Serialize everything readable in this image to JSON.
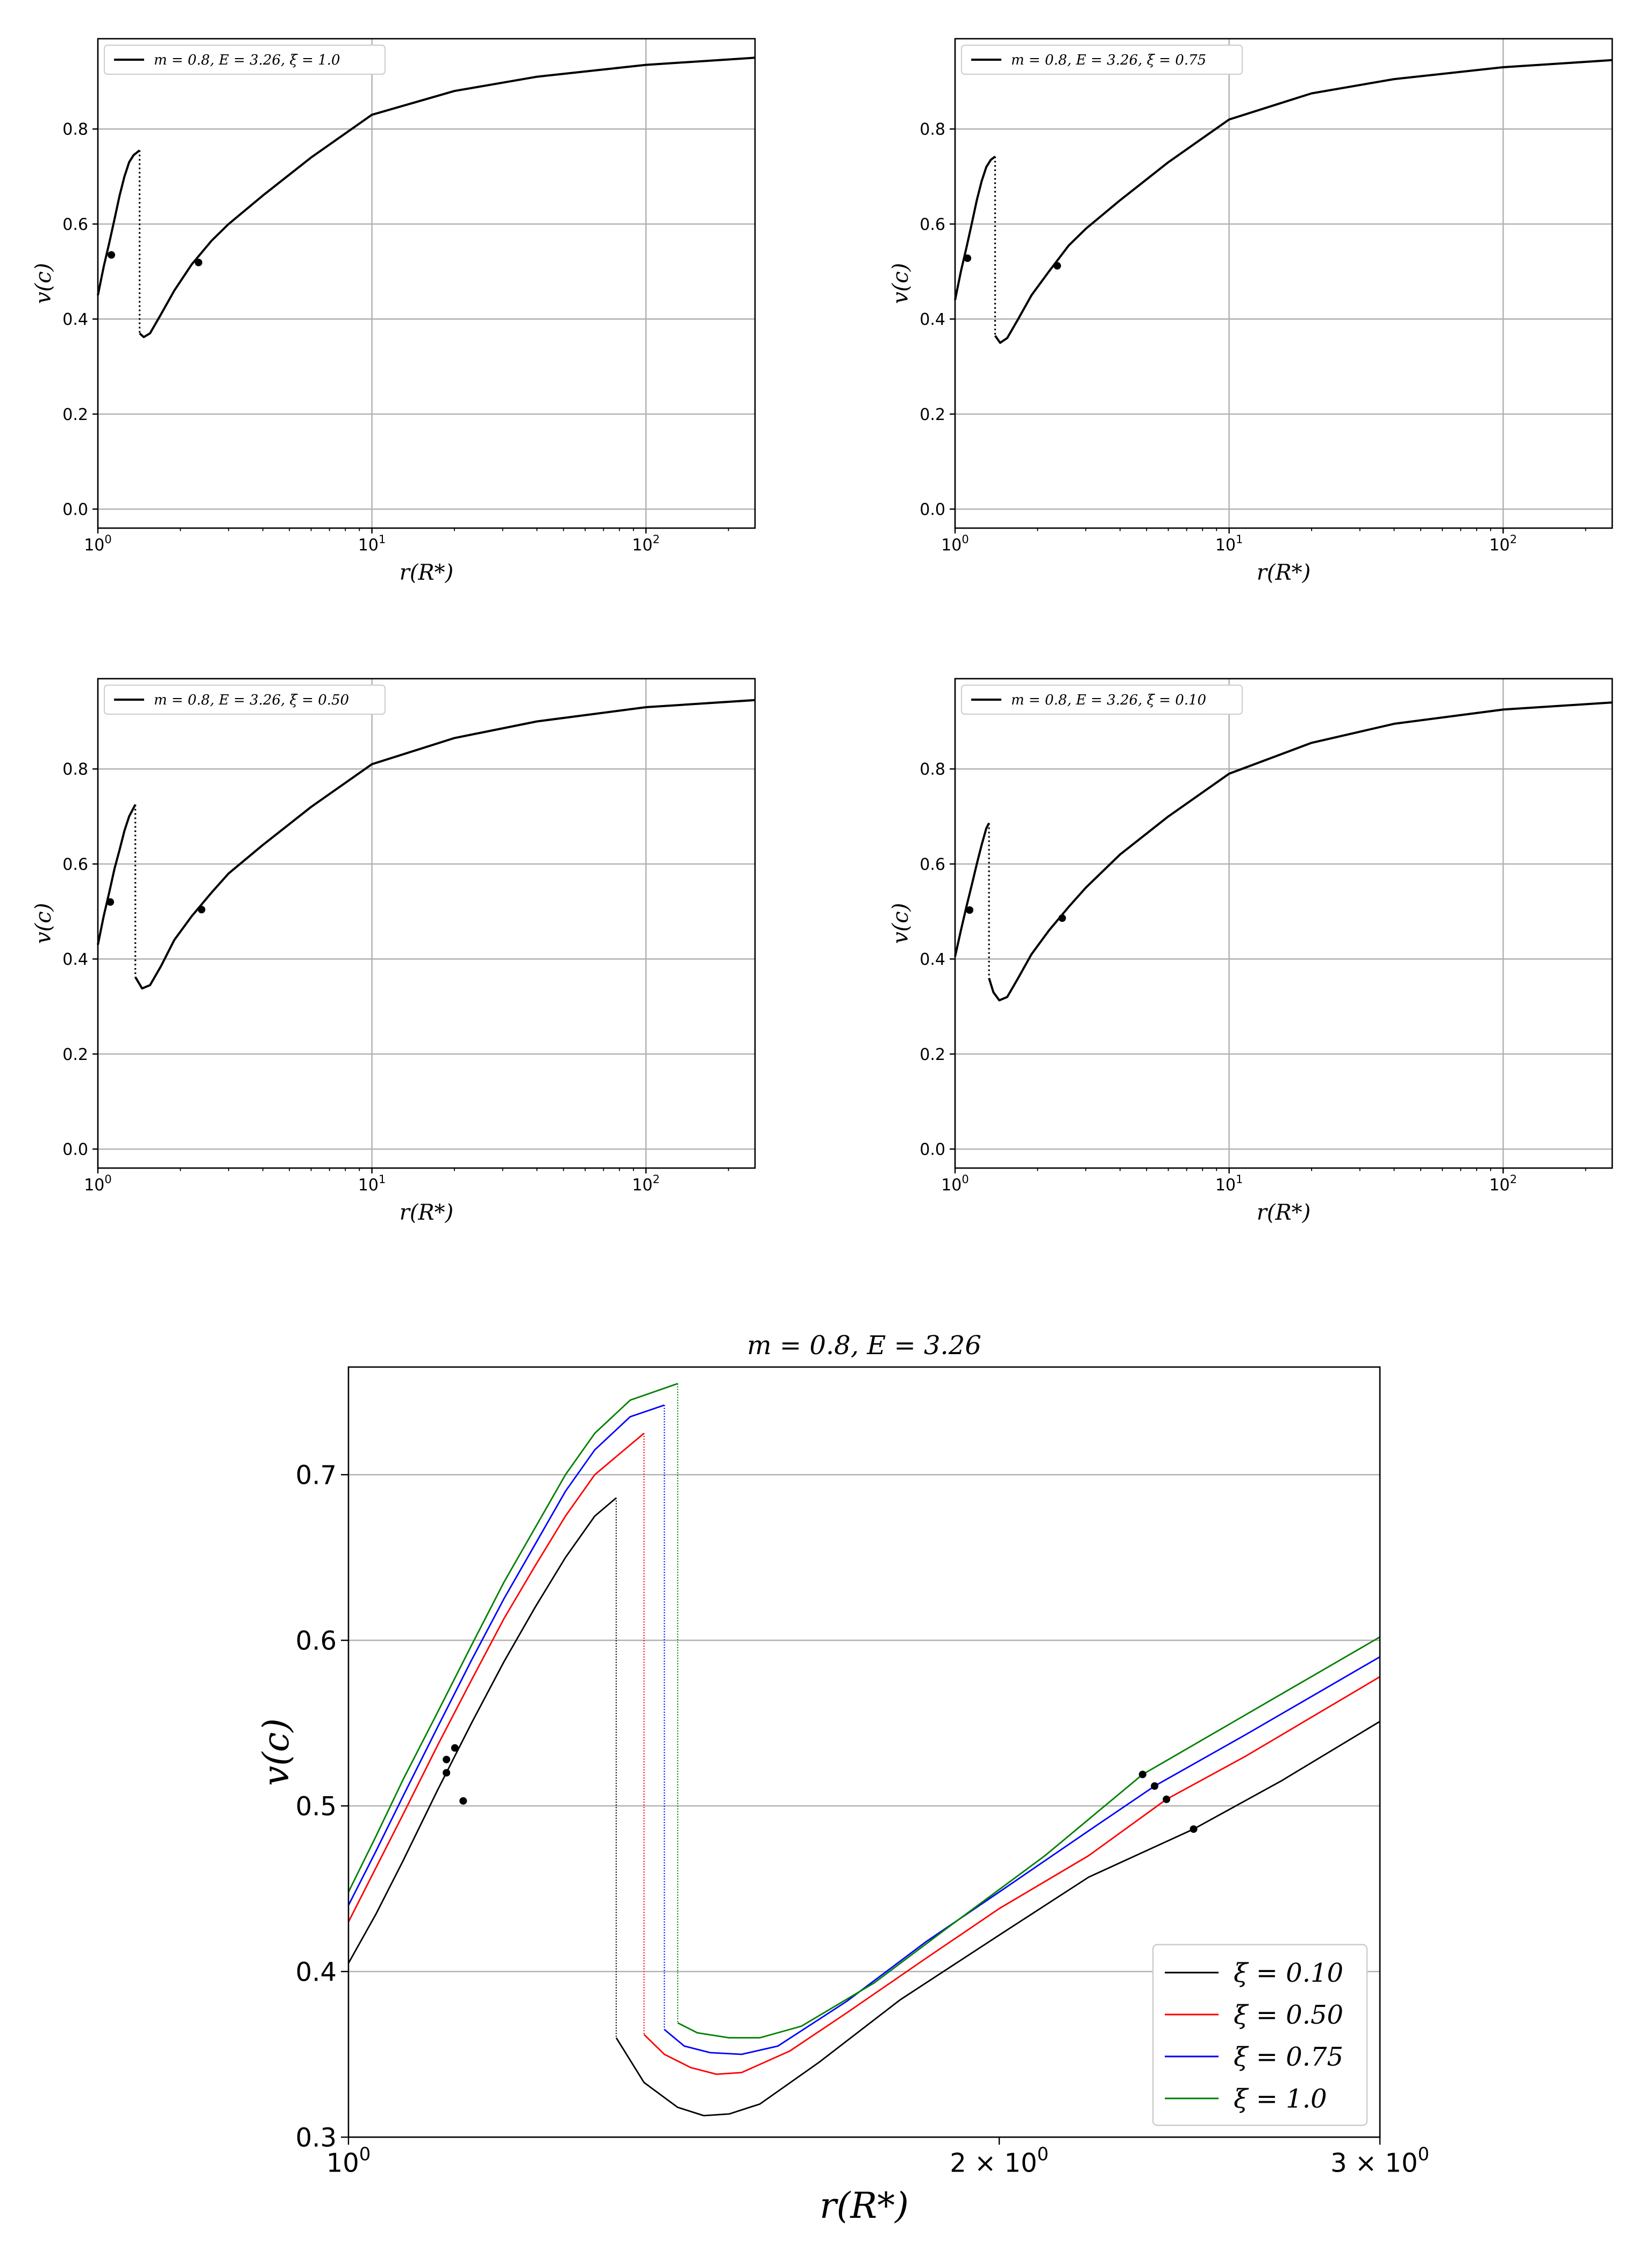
{
  "chart_data": [
    {
      "type": "line",
      "xscale": "log",
      "xlim": [
        1,
        250
      ],
      "ylim": [
        -0.04,
        0.99
      ],
      "yticks": [
        0.0,
        0.2,
        0.4,
        0.6,
        0.8
      ],
      "ytick_labels": [
        "0.0",
        "0.2",
        "0.4",
        "0.6",
        "0.8"
      ],
      "xtick_labels": [
        {
          "base": "10",
          "exp": "0"
        },
        {
          "base": "10",
          "exp": "1"
        },
        {
          "base": "10",
          "exp": "2"
        }
      ],
      "xlabel": "r(R*)",
      "ylabel": "v(c)",
      "grid": true,
      "legend_position": "top-left",
      "legend": [
        "m = 0.8, E = 3.26, ξ = 1.0"
      ],
      "series": [
        {
          "name": "m = 0.8, E = 3.26, ξ = 1.0",
          "color": "#000000",
          "inner": [
            [
              1.0,
              0.45
            ],
            [
              1.05,
              0.51
            ],
            [
              1.1,
              0.56
            ],
            [
              1.15,
              0.61
            ],
            [
              1.2,
              0.66
            ],
            [
              1.25,
              0.7
            ],
            [
              1.3,
              0.73
            ],
            [
              1.35,
              0.745
            ],
            [
              1.42,
              0.755
            ]
          ],
          "shock_x": 1.42,
          "outer": [
            [
              1.42,
              0.37
            ],
            [
              1.47,
              0.362
            ],
            [
              1.55,
              0.37
            ],
            [
              1.7,
              0.41
            ],
            [
              1.9,
              0.46
            ],
            [
              2.2,
              0.515
            ],
            [
              2.6,
              0.565
            ],
            [
              3.0,
              0.6
            ],
            [
              4.0,
              0.66
            ],
            [
              6.0,
              0.74
            ],
            [
              10.0,
              0.83
            ],
            [
              20.0,
              0.88
            ],
            [
              40.0,
              0.91
            ],
            [
              100.0,
              0.935
            ],
            [
              250.0,
              0.95
            ]
          ],
          "markers": [
            [
              1.12,
              0.535
            ],
            [
              2.33,
              0.519
            ]
          ]
        }
      ]
    },
    {
      "type": "line",
      "xscale": "log",
      "xlim": [
        1,
        250
      ],
      "ylim": [
        -0.04,
        0.99
      ],
      "yticks": [
        0.0,
        0.2,
        0.4,
        0.6,
        0.8
      ],
      "ytick_labels": [
        "0.0",
        "0.2",
        "0.4",
        "0.6",
        "0.8"
      ],
      "xtick_labels": [
        {
          "base": "10",
          "exp": "0"
        },
        {
          "base": "10",
          "exp": "1"
        },
        {
          "base": "10",
          "exp": "2"
        }
      ],
      "xlabel": "r(R*)",
      "ylabel": "v(c)",
      "grid": true,
      "legend_position": "top-left",
      "legend": [
        "m = 0.8, E = 3.26, ξ = 0.75"
      ],
      "series": [
        {
          "name": "m = 0.8, E = 3.26, ξ = 0.75",
          "color": "#000000",
          "inner": [
            [
              1.0,
              0.44
            ],
            [
              1.05,
              0.5
            ],
            [
              1.1,
              0.55
            ],
            [
              1.15,
              0.6
            ],
            [
              1.2,
              0.65
            ],
            [
              1.25,
              0.69
            ],
            [
              1.3,
              0.72
            ],
            [
              1.35,
              0.735
            ],
            [
              1.4,
              0.742
            ]
          ],
          "shock_x": 1.4,
          "outer": [
            [
              1.4,
              0.365
            ],
            [
              1.46,
              0.35
            ],
            [
              1.55,
              0.36
            ],
            [
              1.7,
              0.4
            ],
            [
              1.9,
              0.45
            ],
            [
              2.2,
              0.5
            ],
            [
              2.6,
              0.555
            ],
            [
              3.0,
              0.59
            ],
            [
              4.0,
              0.65
            ],
            [
              6.0,
              0.73
            ],
            [
              10.0,
              0.82
            ],
            [
              20.0,
              0.875
            ],
            [
              40.0,
              0.905
            ],
            [
              100.0,
              0.93
            ],
            [
              250.0,
              0.945
            ]
          ],
          "markers": [
            [
              1.11,
              0.528
            ],
            [
              2.36,
              0.512
            ]
          ]
        }
      ]
    },
    {
      "type": "line",
      "xscale": "log",
      "xlim": [
        1,
        250
      ],
      "ylim": [
        -0.04,
        0.99
      ],
      "yticks": [
        0.0,
        0.2,
        0.4,
        0.6,
        0.8
      ],
      "ytick_labels": [
        "0.0",
        "0.2",
        "0.4",
        "0.6",
        "0.8"
      ],
      "xtick_labels": [
        {
          "base": "10",
          "exp": "0"
        },
        {
          "base": "10",
          "exp": "1"
        },
        {
          "base": "10",
          "exp": "2"
        }
      ],
      "xlabel": "r(R*)",
      "ylabel": "v(c)",
      "grid": true,
      "legend_position": "top-left",
      "legend": [
        "m = 0.8, E = 3.26, ξ = 0.50"
      ],
      "series": [
        {
          "name": "m = 0.8, E = 3.26, ξ = 0.50",
          "color": "#000000",
          "inner": [
            [
              1.0,
              0.43
            ],
            [
              1.05,
              0.49
            ],
            [
              1.1,
              0.54
            ],
            [
              1.15,
              0.59
            ],
            [
              1.2,
              0.63
            ],
            [
              1.25,
              0.67
            ],
            [
              1.3,
              0.7
            ],
            [
              1.37,
              0.725
            ]
          ],
          "shock_x": 1.37,
          "outer": [
            [
              1.37,
              0.362
            ],
            [
              1.45,
              0.338
            ],
            [
              1.55,
              0.345
            ],
            [
              1.7,
              0.385
            ],
            [
              1.9,
              0.44
            ],
            [
              2.2,
              0.49
            ],
            [
              2.6,
              0.54
            ],
            [
              3.0,
              0.58
            ],
            [
              4.0,
              0.64
            ],
            [
              6.0,
              0.72
            ],
            [
              10.0,
              0.81
            ],
            [
              20.0,
              0.865
            ],
            [
              40.0,
              0.9
            ],
            [
              100.0,
              0.93
            ],
            [
              250.0,
              0.945
            ]
          ],
          "markers": [
            [
              1.11,
              0.52
            ],
            [
              2.39,
              0.504
            ]
          ]
        }
      ]
    },
    {
      "type": "line",
      "xscale": "log",
      "xlim": [
        1,
        250
      ],
      "ylim": [
        -0.04,
        0.99
      ],
      "yticks": [
        0.0,
        0.2,
        0.4,
        0.6,
        0.8
      ],
      "ytick_labels": [
        "0.0",
        "0.2",
        "0.4",
        "0.6",
        "0.8"
      ],
      "xtick_labels": [
        {
          "base": "10",
          "exp": "0"
        },
        {
          "base": "10",
          "exp": "1"
        },
        {
          "base": "10",
          "exp": "2"
        }
      ],
      "xlabel": "r(R*)",
      "ylabel": "v(c)",
      "grid": true,
      "legend_position": "top-left",
      "legend": [
        "m = 0.8, E = 3.26, ξ = 0.10"
      ],
      "series": [
        {
          "name": "m = 0.8, E = 3.26, ξ = 0.10",
          "color": "#000000",
          "inner": [
            [
              1.0,
              0.405
            ],
            [
              1.05,
              0.46
            ],
            [
              1.1,
              0.51
            ],
            [
              1.15,
              0.555
            ],
            [
              1.2,
              0.6
            ],
            [
              1.25,
              0.64
            ],
            [
              1.3,
              0.675
            ],
            [
              1.33,
              0.686
            ]
          ],
          "shock_x": 1.33,
          "outer": [
            [
              1.33,
              0.36
            ],
            [
              1.38,
              0.33
            ],
            [
              1.45,
              0.313
            ],
            [
              1.55,
              0.32
            ],
            [
              1.7,
              0.36
            ],
            [
              1.9,
              0.41
            ],
            [
              2.2,
              0.46
            ],
            [
              2.6,
              0.51
            ],
            [
              3.0,
              0.55
            ],
            [
              4.0,
              0.62
            ],
            [
              6.0,
              0.7
            ],
            [
              10.0,
              0.79
            ],
            [
              20.0,
              0.855
            ],
            [
              40.0,
              0.895
            ],
            [
              100.0,
              0.925
            ],
            [
              250.0,
              0.94
            ]
          ],
          "markers": [
            [
              1.13,
              0.503
            ],
            [
              2.46,
              0.486
            ]
          ]
        }
      ]
    },
    {
      "type": "line",
      "title": "m = 0.8, E = 3.26",
      "xscale": "log",
      "xlim": [
        1,
        3
      ],
      "ylim": [
        0.3,
        0.765
      ],
      "yticks": [
        0.3,
        0.4,
        0.5,
        0.6,
        0.7
      ],
      "ytick_labels": [
        "0.3",
        "0.4",
        "0.5",
        "0.6",
        "0.7"
      ],
      "xticks": [
        1,
        2,
        3
      ],
      "xtick_labels": [
        {
          "base": "10",
          "exp": "0"
        },
        {
          "base": "2 × 10",
          "exp": "0"
        },
        {
          "base": "3 × 10",
          "exp": "0"
        }
      ],
      "xlabel": "r(R*)",
      "ylabel": "v(c)",
      "grid": "y",
      "legend_position": "lower-right",
      "legend": [
        "ξ = 0.10",
        "ξ = 0.50",
        "ξ = 0.75",
        "ξ = 1.0"
      ],
      "series": [
        {
          "name": "ξ = 0.10",
          "color": "#000000",
          "inner": [
            [
              1.0,
              0.405
            ],
            [
              1.03,
              0.435
            ],
            [
              1.06,
              0.467
            ],
            [
              1.1,
              0.51
            ],
            [
              1.14,
              0.55
            ],
            [
              1.18,
              0.587
            ],
            [
              1.22,
              0.62
            ],
            [
              1.26,
              0.65
            ],
            [
              1.3,
              0.675
            ],
            [
              1.33,
              0.686
            ]
          ],
          "shock_x": 1.33,
          "outer": [
            [
              1.33,
              0.36
            ],
            [
              1.37,
              0.333
            ],
            [
              1.42,
              0.318
            ],
            [
              1.46,
              0.313
            ],
            [
              1.5,
              0.314
            ],
            [
              1.55,
              0.32
            ],
            [
              1.65,
              0.345
            ],
            [
              1.8,
              0.383
            ],
            [
              2.0,
              0.422
            ],
            [
              2.2,
              0.457
            ],
            [
              2.46,
              0.486
            ],
            [
              2.7,
              0.515
            ],
            [
              3.0,
              0.551
            ]
          ],
          "markers": [
            [
              1.13,
              0.503
            ],
            [
              2.46,
              0.486
            ]
          ]
        },
        {
          "name": "ξ = 0.50",
          "color": "#ff0000",
          "inner": [
            [
              1.0,
              0.43
            ],
            [
              1.03,
              0.463
            ],
            [
              1.06,
              0.495
            ],
            [
              1.1,
              0.537
            ],
            [
              1.14,
              0.576
            ],
            [
              1.18,
              0.613
            ],
            [
              1.22,
              0.645
            ],
            [
              1.26,
              0.675
            ],
            [
              1.3,
              0.7
            ],
            [
              1.37,
              0.725
            ]
          ],
          "shock_x": 1.37,
          "outer": [
            [
              1.37,
              0.362
            ],
            [
              1.4,
              0.35
            ],
            [
              1.44,
              0.342
            ],
            [
              1.48,
              0.338
            ],
            [
              1.52,
              0.339
            ],
            [
              1.6,
              0.352
            ],
            [
              1.7,
              0.375
            ],
            [
              1.85,
              0.408
            ],
            [
              2.0,
              0.438
            ],
            [
              2.2,
              0.47
            ],
            [
              2.39,
              0.504
            ],
            [
              2.6,
              0.53
            ],
            [
              3.0,
              0.578
            ]
          ],
          "markers": [
            [
              1.11,
              0.52
            ],
            [
              2.39,
              0.504
            ]
          ]
        },
        {
          "name": "ξ = 0.75",
          "color": "#0000ff",
          "inner": [
            [
              1.0,
              0.44
            ],
            [
              1.03,
              0.473
            ],
            [
              1.06,
              0.506
            ],
            [
              1.1,
              0.548
            ],
            [
              1.14,
              0.588
            ],
            [
              1.18,
              0.625
            ],
            [
              1.22,
              0.658
            ],
            [
              1.26,
              0.69
            ],
            [
              1.3,
              0.715
            ],
            [
              1.35,
              0.735
            ],
            [
              1.4,
              0.742
            ]
          ],
          "shock_x": 1.4,
          "outer": [
            [
              1.4,
              0.365
            ],
            [
              1.43,
              0.355
            ],
            [
              1.47,
              0.351
            ],
            [
              1.52,
              0.35
            ],
            [
              1.58,
              0.355
            ],
            [
              1.7,
              0.382
            ],
            [
              1.85,
              0.418
            ],
            [
              2.0,
              0.448
            ],
            [
              2.2,
              0.485
            ],
            [
              2.36,
              0.512
            ],
            [
              2.6,
              0.543
            ],
            [
              3.0,
              0.59
            ]
          ],
          "markers": [
            [
              1.11,
              0.528
            ],
            [
              2.36,
              0.512
            ]
          ]
        },
        {
          "name": "ξ = 1.0",
          "color": "#008000",
          "inner": [
            [
              1.0,
              0.448
            ],
            [
              1.03,
              0.482
            ],
            [
              1.06,
              0.516
            ],
            [
              1.1,
              0.557
            ],
            [
              1.14,
              0.597
            ],
            [
              1.18,
              0.635
            ],
            [
              1.22,
              0.668
            ],
            [
              1.26,
              0.7
            ],
            [
              1.3,
              0.725
            ],
            [
              1.35,
              0.745
            ],
            [
              1.42,
              0.755
            ]
          ],
          "shock_x": 1.42,
          "outer": [
            [
              1.42,
              0.369
            ],
            [
              1.45,
              0.363
            ],
            [
              1.5,
              0.36
            ],
            [
              1.55,
              0.36
            ],
            [
              1.62,
              0.367
            ],
            [
              1.75,
              0.393
            ],
            [
              1.9,
              0.428
            ],
            [
              2.1,
              0.47
            ],
            [
              2.33,
              0.519
            ],
            [
              2.6,
              0.555
            ],
            [
              3.0,
              0.602
            ]
          ],
          "markers": [
            [
              1.12,
              0.535
            ],
            [
              2.33,
              0.519
            ]
          ]
        }
      ]
    }
  ]
}
